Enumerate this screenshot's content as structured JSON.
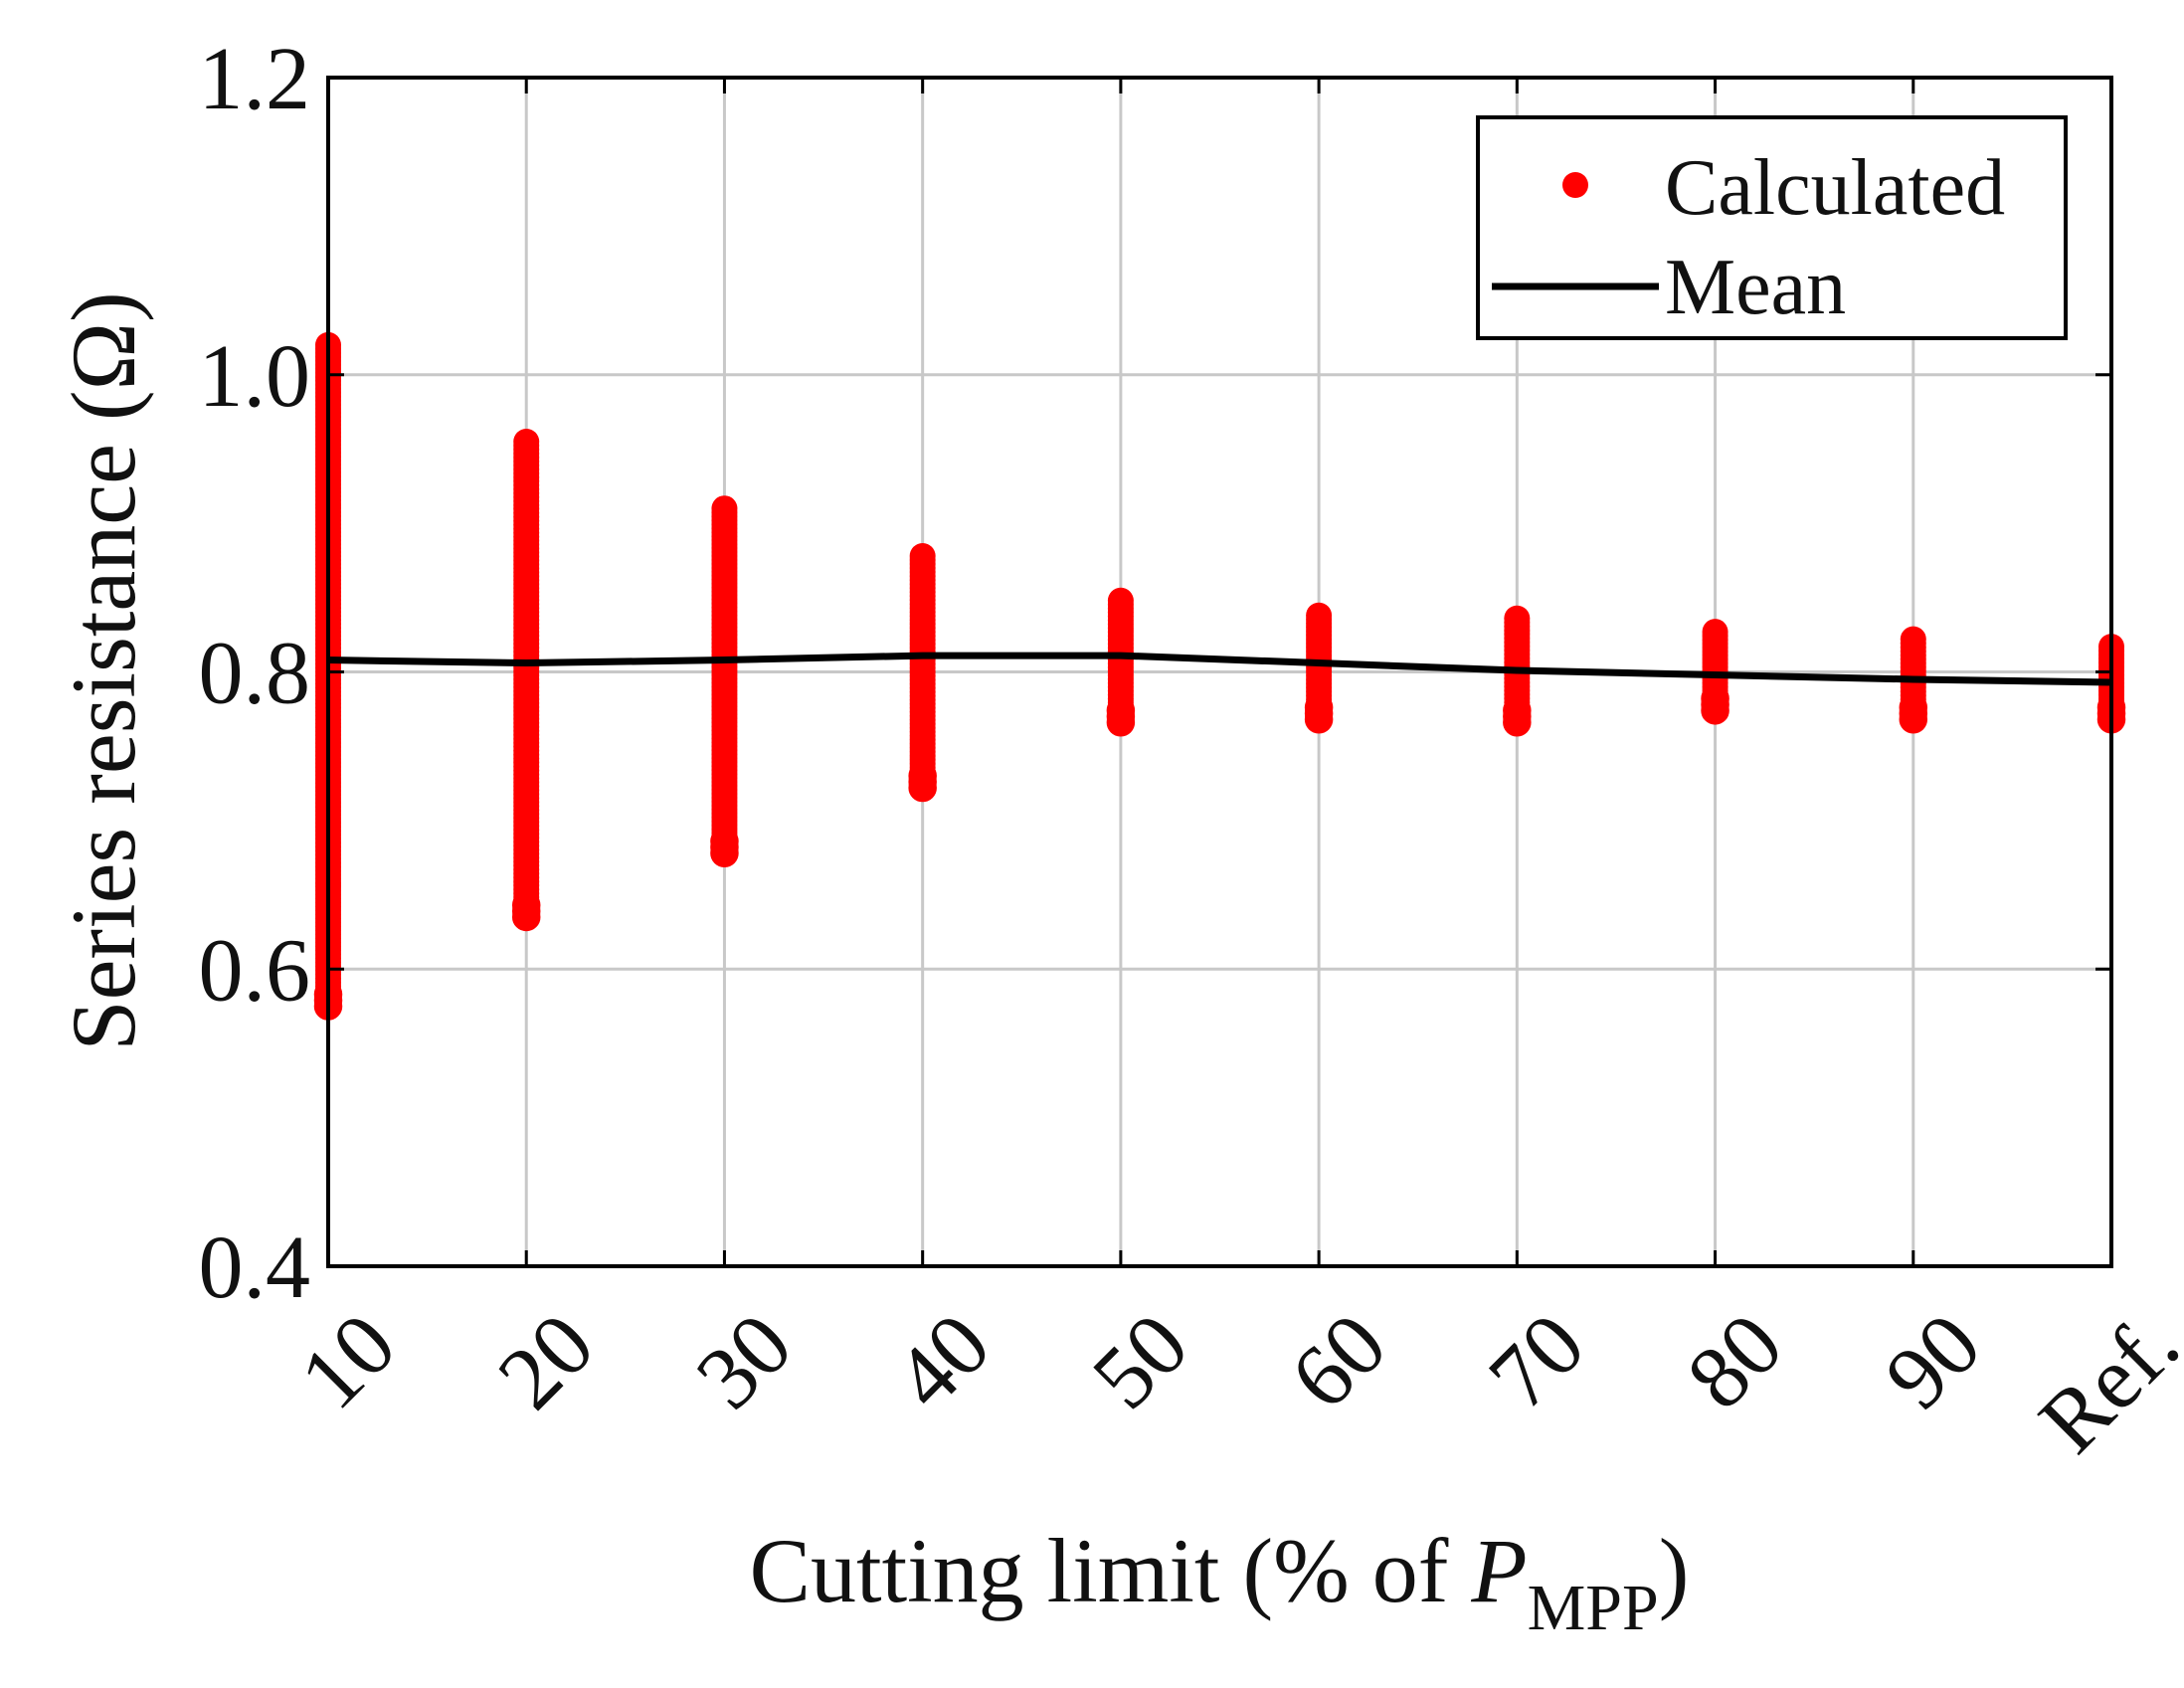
{
  "chart_data": {
    "type": "scatter",
    "title": "",
    "xlabel": {
      "prefix": "Cutting limit (% of ",
      "symbol": "P",
      "subscript": "MPP",
      "suffix": ")"
    },
    "ylabel": "Series resistance (Ω)",
    "ylim": [
      0.4,
      1.2
    ],
    "yticks": [
      "0.4",
      "0.6",
      "0.8",
      "1.0",
      "1.2"
    ],
    "categories": [
      "10",
      "20",
      "30",
      "40",
      "50",
      "60",
      "70",
      "80",
      "90",
      "Ref."
    ],
    "grid": true,
    "legend_position": "top-right",
    "series": [
      {
        "name": "Calculated",
        "kind": "markers",
        "color": "#ff0000",
        "min": [
          0.575,
          0.635,
          0.678,
          0.722,
          0.766,
          0.768,
          0.766,
          0.774,
          0.768,
          0.768
        ],
        "max": [
          1.02,
          0.955,
          0.91,
          0.878,
          0.848,
          0.838,
          0.836,
          0.827,
          0.822,
          0.817
        ]
      },
      {
        "name": "Mean",
        "kind": "line",
        "color": "#000000",
        "values": [
          0.808,
          0.806,
          0.808,
          0.811,
          0.811,
          0.806,
          0.801,
          0.798,
          0.795,
          0.793
        ]
      }
    ]
  }
}
